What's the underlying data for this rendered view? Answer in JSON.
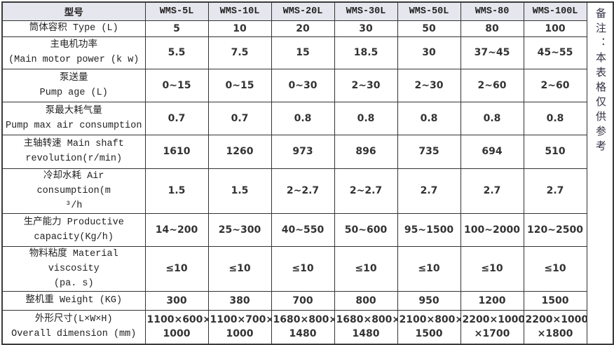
{
  "colors": {
    "header_bg": "#e6e6ee",
    "border_inner": "#333333",
    "border_outer": "#3a3a3a",
    "text": "#333333"
  },
  "table": {
    "header": [
      "型号",
      "WMS-5L",
      "WMS-10L",
      "WMS-20L",
      "WMS-30L",
      "WMS-50L",
      "WMS-80",
      "WMS-100L"
    ],
    "rows": [
      {
        "label": [
          "筒体容积 Type (L)"
        ],
        "values": [
          "5",
          "10",
          "20",
          "30",
          "50",
          "80",
          "100"
        ]
      },
      {
        "label": [
          "主电机功率",
          "(Main motor power (k w)"
        ],
        "values": [
          "5.5",
          "7.5",
          "15",
          "18.5",
          "30",
          "37~45",
          "45~55"
        ]
      },
      {
        "label": [
          "泵送量",
          "Pump age (L)"
        ],
        "values": [
          "0~15",
          "0~15",
          "0~30",
          "2~30",
          "2~30",
          "2~60",
          "2~60"
        ]
      },
      {
        "label": [
          "泵最大耗气量",
          "Pump max air consumption"
        ],
        "values": [
          "0.7",
          "0.7",
          "0.8",
          "0.8",
          "0.8",
          "0.8",
          "0.8"
        ]
      },
      {
        "label": [
          "主轴转速 Main shaft",
          "revolution(r/min)"
        ],
        "values": [
          "1610",
          "1260",
          "973",
          "896",
          "735",
          "694",
          "510"
        ]
      },
      {
        "label": [
          "冷却水耗 Air consumption(m",
          "³/h"
        ],
        "values": [
          "1.5",
          "1.5",
          "2~2.7",
          "2~2.7",
          "2.7",
          "2.7",
          "2.7"
        ]
      },
      {
        "label": [
          "生产能力 Productive",
          "capacity(Kg/h)"
        ],
        "values": [
          "14~200",
          "25~300",
          "40~550",
          "50~600",
          "95~1500",
          "100~2000",
          "120~2500"
        ]
      },
      {
        "label": [
          "物料粘度 Material viscosity",
          "(pa. s)"
        ],
        "values": [
          "≤10",
          "≤10",
          "≤10",
          "≤10",
          "≤10",
          "≤10",
          "≤10"
        ]
      },
      {
        "label": [
          "整机重 Weight (KG)"
        ],
        "values": [
          "300",
          "380",
          "700",
          "800",
          "950",
          "1200",
          "1500"
        ]
      },
      {
        "label": [
          "外形尺寸(L×W×H)",
          "Overall dimension (mm)"
        ],
        "values": [
          [
            "1100×600×",
            "1000"
          ],
          [
            "1100×700×",
            "1000"
          ],
          [
            "1680×800×",
            "1480"
          ],
          [
            "1680×800×",
            "1480"
          ],
          [
            "2100×800×",
            "1500"
          ],
          [
            "2200×1000",
            "×1700"
          ],
          [
            "2200×1000",
            "×1800"
          ]
        ]
      }
    ],
    "note_vertical": "备注：本表格仅供参考"
  }
}
